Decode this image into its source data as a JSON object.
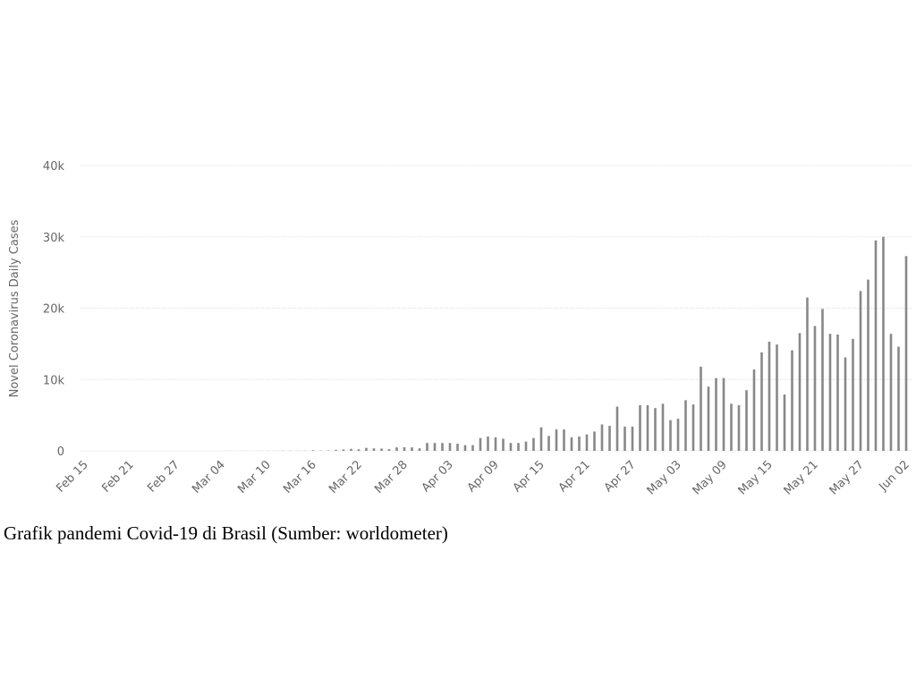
{
  "chart_data": {
    "type": "bar",
    "y_label": "Novel Coronavirus Daily Cases",
    "caption": "Grafik pandemi Covid-19 di Brasil (Sumber: worldometer)",
    "color": "#888888",
    "grid": true,
    "ylim": [
      0,
      40000
    ],
    "yticks": [
      0,
      {
        "value": 10000,
        "label": "10k"
      },
      {
        "value": 20000,
        "label": "20k"
      },
      {
        "value": 30000,
        "label": "30k"
      },
      {
        "value": 40000,
        "label": "40k"
      }
    ],
    "categories": [
      "Feb 15",
      null,
      null,
      null,
      null,
      null,
      "Feb 21",
      null,
      null,
      null,
      null,
      null,
      "Feb 27",
      null,
      null,
      null,
      null,
      null,
      "Mar 04",
      null,
      null,
      null,
      null,
      null,
      "Mar 10",
      null,
      null,
      null,
      null,
      null,
      "Mar 16",
      null,
      null,
      null,
      null,
      null,
      "Mar 22",
      null,
      null,
      null,
      null,
      null,
      "Mar 28",
      null,
      null,
      null,
      null,
      null,
      "Apr 03",
      null,
      null,
      null,
      null,
      null,
      "Apr 09",
      null,
      null,
      null,
      null,
      null,
      "Apr 15",
      null,
      null,
      null,
      null,
      null,
      "Apr 21",
      null,
      null,
      null,
      null,
      null,
      "Apr 27",
      null,
      null,
      null,
      null,
      null,
      "May 03",
      null,
      null,
      null,
      null,
      null,
      "May 09",
      null,
      null,
      null,
      null,
      null,
      "May 15",
      null,
      null,
      null,
      null,
      null,
      "May 21",
      null,
      null,
      null,
      null,
      null,
      "May 27",
      null,
      null,
      null,
      null,
      null,
      "Jun 02"
    ],
    "values": [
      0,
      0,
      0,
      0,
      0,
      0,
      0,
      0,
      0,
      0,
      0,
      1,
      0,
      0,
      0,
      1,
      0,
      0,
      0,
      6,
      5,
      6,
      6,
      5,
      9,
      9,
      18,
      25,
      21,
      23,
      79,
      34,
      57,
      137,
      193,
      283,
      224,
      418,
      345,
      310,
      232,
      482,
      502,
      487,
      352,
      1100,
      1100,
      1100,
      1100,
      1000,
      800,
      800,
      1800,
      2000,
      1900,
      1700,
      1100,
      1100,
      1300,
      1800,
      3300,
      2100,
      3000,
      3000,
      1900,
      2000,
      2300,
      2700,
      3700,
      3500,
      6200,
      3400,
      3400,
      6400,
      6400,
      6000,
      6600,
      4300,
      4500,
      7100,
      6500,
      11800,
      9000,
      10200,
      10200,
      6600,
      6400,
      8500,
      11400,
      13800,
      15300,
      14900,
      7900,
      14100,
      16500,
      21500,
      17500,
      19900,
      16400,
      16300,
      13100,
      15700,
      22400,
      24000,
      29500,
      30000,
      16400,
      14600,
      27300
    ]
  }
}
